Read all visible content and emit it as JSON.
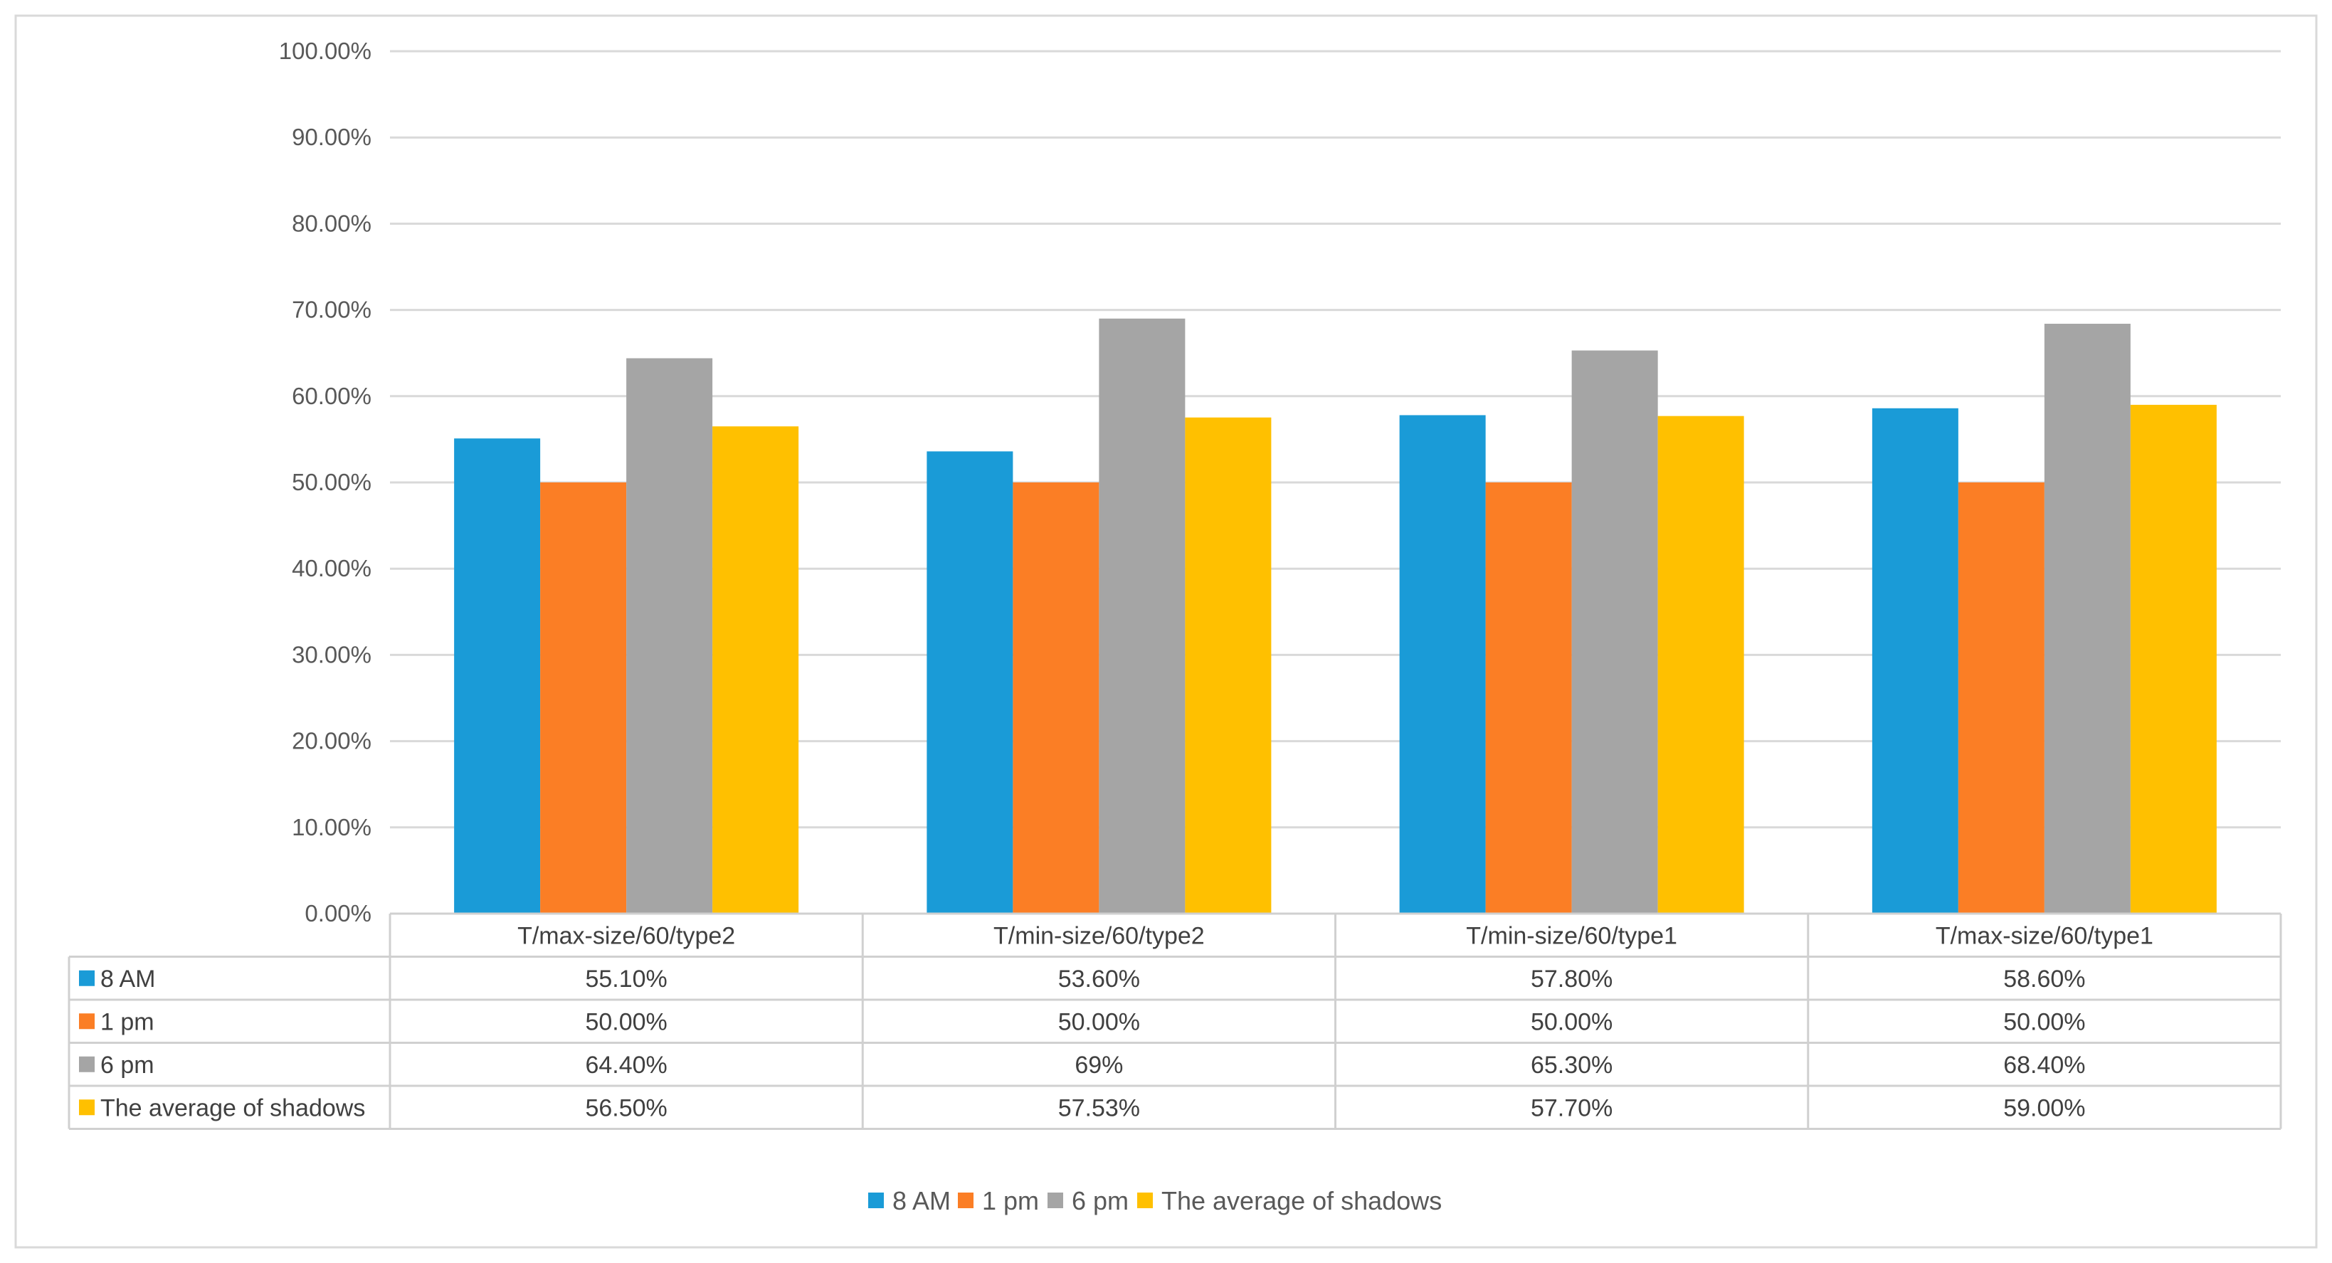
{
  "chart_data": {
    "type": "bar",
    "title": "",
    "xlabel": "",
    "ylabel": "",
    "ylim": [
      0,
      100
    ],
    "y_ticks": [
      "0.00%",
      "10.00%",
      "20.00%",
      "30.00%",
      "40.00%",
      "50.00%",
      "60.00%",
      "70.00%",
      "80.00%",
      "90.00%",
      "100.00%"
    ],
    "y_tick_values": [
      0,
      10,
      20,
      30,
      40,
      50,
      60,
      70,
      80,
      90,
      100
    ],
    "grid": true,
    "legend_position": "bottom",
    "categories": [
      "T/max-size/60/type2",
      "T/min-size/60/type2",
      "T/min-size/60/type1",
      "T/max-size/60/type1"
    ],
    "series": [
      {
        "name": "8 AM",
        "color": "#1a9bd7",
        "values": [
          55.1,
          53.6,
          57.8,
          58.6
        ],
        "labels": [
          "55.10%",
          "53.60%",
          "57.80%",
          "58.60%"
        ]
      },
      {
        "name": "1 pm",
        "color": "#fb7e25",
        "values": [
          50.0,
          50.0,
          50.0,
          50.0
        ],
        "labels": [
          "50.00%",
          "50.00%",
          "50.00%",
          "50.00%"
        ]
      },
      {
        "name": "6 pm",
        "color": "#a5a5a5",
        "values": [
          64.4,
          69.0,
          65.3,
          68.4
        ],
        "labels": [
          "64.40%",
          "69%",
          "65.30%",
          "68.40%"
        ]
      },
      {
        "name": "The average of shadows",
        "color": "#ffc000",
        "values": [
          56.5,
          57.53,
          57.7,
          59.0
        ],
        "labels": [
          "56.50%",
          "57.53%",
          "57.70%",
          "59.00%"
        ]
      }
    ]
  }
}
